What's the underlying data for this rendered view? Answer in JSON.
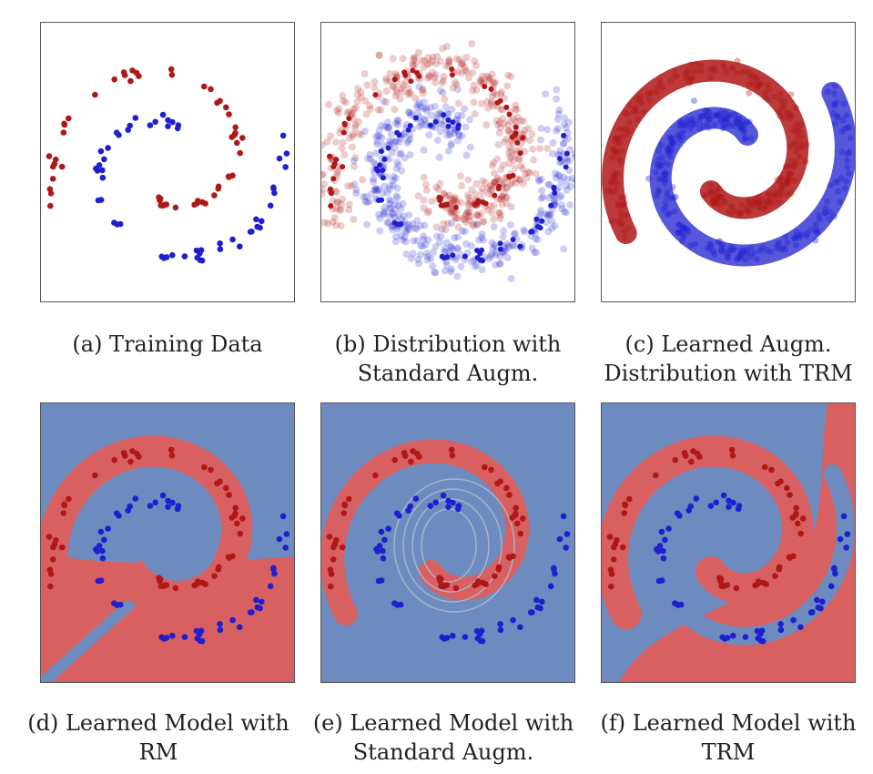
{
  "figure": {
    "panels": [
      {
        "id": "a",
        "caption": [
          "(a) Training Data"
        ],
        "kind": "training"
      },
      {
        "id": "b",
        "caption": [
          "(b) Distribution with",
          "Standard Augm."
        ],
        "kind": "dist-standard"
      },
      {
        "id": "c",
        "caption": [
          "(c) Learned Augm.",
          "Distribution with TRM"
        ],
        "kind": "dist-trm"
      },
      {
        "id": "d",
        "caption": [
          "(d) Learned Model with",
          "RM"
        ],
        "kind": "model-rm"
      },
      {
        "id": "e",
        "caption": [
          "(e) Learned Model with",
          "Standard Augm."
        ],
        "kind": "model-standard"
      },
      {
        "id": "f",
        "caption": [
          "(f) Learned Model with",
          "TRM"
        ],
        "kind": "model-trm"
      }
    ],
    "colors": {
      "class_blue": "#1f1fd0",
      "class_red": "#b01818",
      "region_blue": "#6e8bbf",
      "region_red": "#d86060",
      "border": "#555555"
    }
  }
}
